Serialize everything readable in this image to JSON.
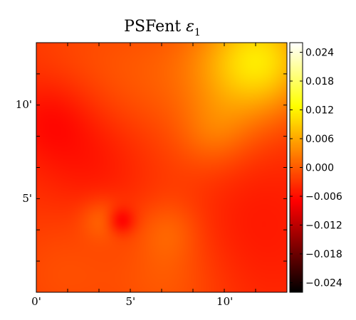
{
  "chart_data": {
    "type": "heatmap",
    "title": "PSFent ",
    "title_symbol": "ε",
    "title_subscript": "1",
    "xlabel": "",
    "ylabel": "",
    "x_unit": "arcmin",
    "xlim": [
      0,
      13.3
    ],
    "ylim": [
      0,
      13.3
    ],
    "x_ticks": [
      0,
      5,
      10
    ],
    "x_tick_labels": [
      "0'",
      "5'",
      "10'"
    ],
    "y_ticks": [
      5,
      10
    ],
    "y_tick_labels": [
      "5'",
      "10'"
    ],
    "colormap": "hot",
    "colorbar": {
      "range": [
        -0.026,
        0.026
      ],
      "ticks": [
        -0.024,
        -0.018,
        -0.012,
        -0.006,
        0.0,
        0.006,
        0.012,
        0.018,
        0.024
      ],
      "tick_labels": [
        "−0.024",
        "−0.018",
        "−0.012",
        "−0.006",
        "0.000",
        "0.006",
        "0.012",
        "0.018",
        "0.024"
      ]
    },
    "base_value": -0.0035,
    "features": [
      {
        "x": 12.0,
        "y": 12.5,
        "value": 0.0105,
        "spread": 2.0
      },
      {
        "x": 10.5,
        "y": 11.5,
        "value": 0.005,
        "spread": 2.5
      },
      {
        "x": 9.5,
        "y": 8.5,
        "value": 0.003,
        "spread": 1.3
      },
      {
        "x": 6.0,
        "y": 12.0,
        "value": 0.002,
        "spread": 2.5
      },
      {
        "x": 2.0,
        "y": 12.5,
        "value": 0.0015,
        "spread": 2.5
      },
      {
        "x": 0.8,
        "y": 9.3,
        "value": -0.003,
        "spread": 1.6
      },
      {
        "x": 3.0,
        "y": 7.0,
        "value": -0.002,
        "spread": 2.0
      },
      {
        "x": 3.5,
        "y": 3.9,
        "value": 0.0035,
        "spread": 0.8
      },
      {
        "x": 4.5,
        "y": 3.8,
        "value": -0.0055,
        "spread": 0.5
      },
      {
        "x": 7.0,
        "y": 3.3,
        "value": 0.003,
        "spread": 1.2
      },
      {
        "x": 1.5,
        "y": 1.0,
        "value": 0.0025,
        "spread": 2.5
      },
      {
        "x": 7.0,
        "y": 0.5,
        "value": 0.003,
        "spread": 2.0
      },
      {
        "x": 11.5,
        "y": 4.5,
        "value": -0.0015,
        "spread": 2.5
      },
      {
        "x": 12.5,
        "y": 1.5,
        "value": -0.0005,
        "spread": 2.0
      },
      {
        "x": 8.0,
        "y": 6.5,
        "value": 0.001,
        "spread": 2.0
      },
      {
        "x": 5.0,
        "y": 10.0,
        "value": 0.0005,
        "spread": 2.0
      }
    ]
  }
}
